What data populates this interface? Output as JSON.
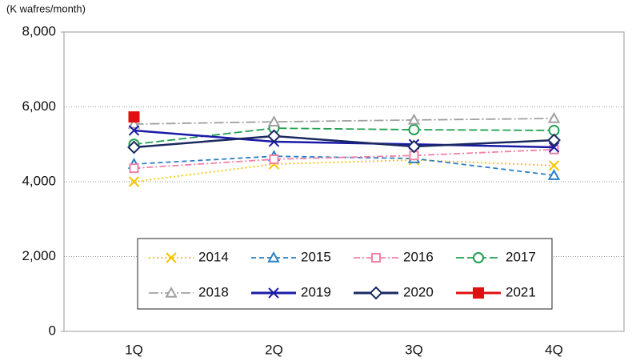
{
  "chart_data": {
    "type": "line",
    "y_axis_label": "(K wafres/month)",
    "categories": [
      "1Q",
      "2Q",
      "3Q",
      "4Q"
    ],
    "series": [
      {
        "name": "2014",
        "color": "#f5c400",
        "marker": "x",
        "dash": "2,3",
        "values": [
          4000,
          4470,
          4580,
          4430
        ]
      },
      {
        "name": "2015",
        "color": "#2a7fc0",
        "marker": "triangle",
        "dash": "6,4",
        "values": [
          4470,
          4680,
          4620,
          4170
        ]
      },
      {
        "name": "2016",
        "color": "#f080a8",
        "marker": "square",
        "dash": "8,3,2,3",
        "values": [
          4360,
          4600,
          4700,
          4860
        ]
      },
      {
        "name": "2017",
        "color": "#20a050",
        "marker": "circle",
        "dash": "10,4",
        "values": [
          5000,
          5430,
          5390,
          5370
        ]
      },
      {
        "name": "2018",
        "color": "#a0a0a0",
        "marker": "triangle",
        "dash": "12,3,2,3",
        "values": [
          5540,
          5600,
          5650,
          5690
        ]
      },
      {
        "name": "2019",
        "color": "#1a1aa8",
        "marker": "x",
        "dash": "",
        "values": [
          5370,
          5070,
          5000,
          4920
        ]
      },
      {
        "name": "2020",
        "color": "#1a2a60",
        "marker": "diamond",
        "dash": "",
        "values": [
          4920,
          5220,
          4940,
          5110
        ]
      },
      {
        "name": "2021",
        "color": "#e01010",
        "marker": "filled-square",
        "dash": "",
        "values": [
          5730,
          null,
          null,
          null
        ]
      }
    ],
    "ylim": [
      0,
      8000
    ],
    "yticks": [
      0,
      {
        "value": 2000,
        "label": "2,000"
      },
      {
        "value": 4000,
        "label": "4,000"
      },
      {
        "value": 6000,
        "label": "6,000"
      },
      {
        "value": 8000,
        "label": "8,000"
      }
    ],
    "grid": true
  }
}
